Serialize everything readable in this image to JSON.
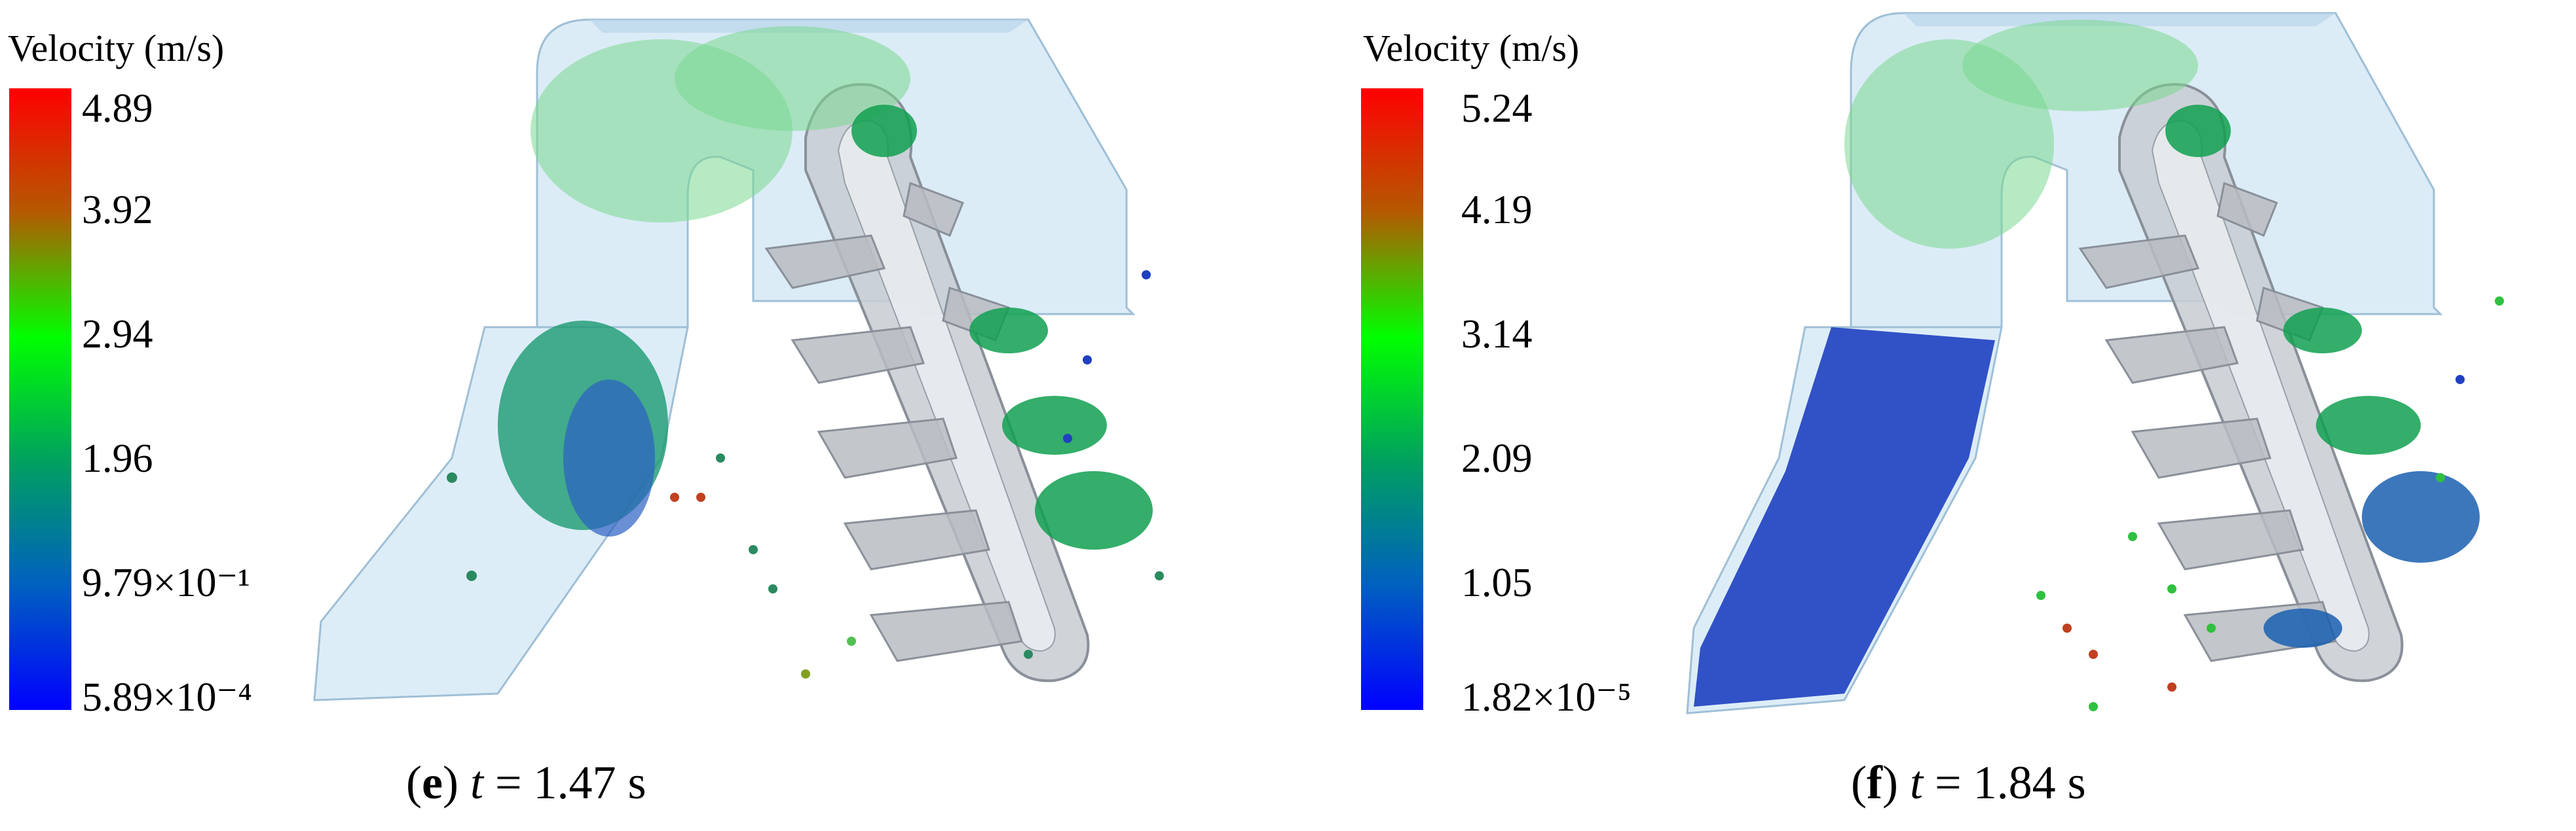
{
  "panels": [
    {
      "id": "e",
      "colorbar": {
        "title": "Velocity (m/s)",
        "ticks": [
          "4.89",
          "3.92",
          "2.94",
          "1.96",
          "9.79×10⁻¹",
          "5.89×10⁻⁴"
        ],
        "gradient": [
          "#ff0000",
          "#b45a00",
          "#00ff00",
          "#00a060",
          "#0060c0",
          "#0000ff"
        ]
      },
      "caption": {
        "letter": "e",
        "var": "t",
        "rest": " = 1.47 s"
      }
    },
    {
      "id": "f",
      "colorbar": {
        "title": "Velocity (m/s)",
        "ticks": [
          "5.24",
          "4.19",
          "3.14",
          "2.09",
          "1.05",
          "1.82×10⁻⁵"
        ],
        "gradient": [
          "#ff0000",
          "#b45a00",
          "#00ff00",
          "#00a060",
          "#0060c0",
          "#0000ff"
        ]
      },
      "caption": {
        "letter": "f",
        "var": "t",
        "rest": " = 1.84 s"
      }
    }
  ]
}
